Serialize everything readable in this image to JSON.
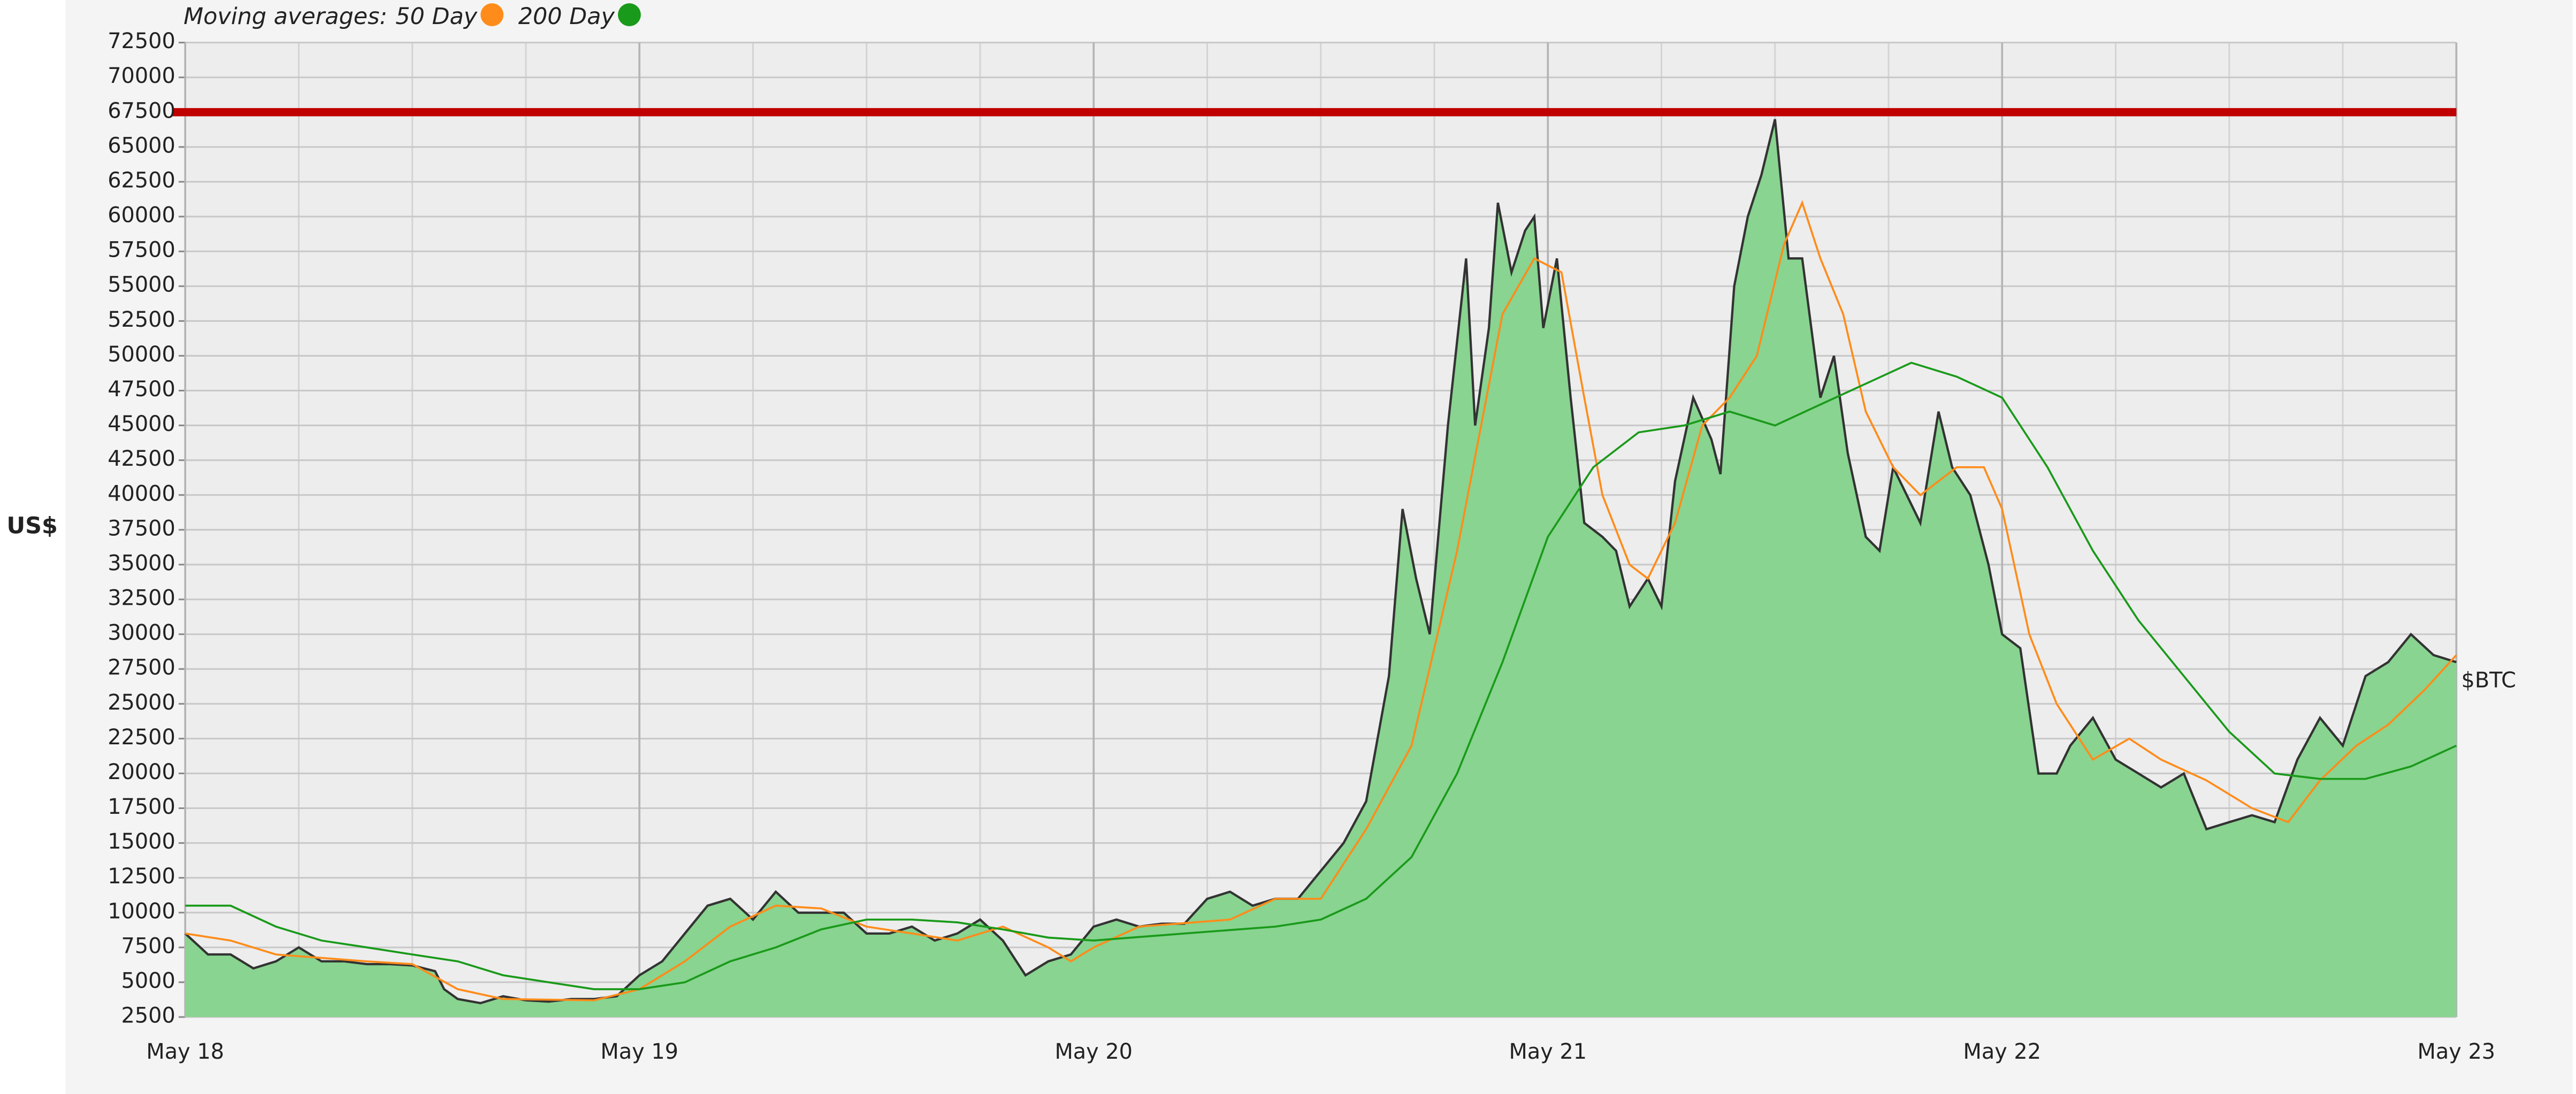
{
  "chart_data": {
    "type": "line",
    "ylabel": "US$",
    "legend_title": "Moving averages:",
    "ylim": [
      2500,
      72500
    ],
    "yticks": [
      2500,
      5000,
      7500,
      10000,
      12500,
      15000,
      17500,
      20000,
      22500,
      25000,
      27500,
      30000,
      32500,
      35000,
      37500,
      40000,
      42500,
      45000,
      47500,
      50000,
      52500,
      55000,
      57500,
      60000,
      62500,
      65000,
      67500,
      70000,
      72500
    ],
    "xlim": [
      0,
      5
    ],
    "xticks": [
      {
        "value": 0,
        "label": "May 18"
      },
      {
        "value": 1,
        "label": "May 19"
      },
      {
        "value": 2,
        "label": "May 20"
      },
      {
        "value": 3,
        "label": "May 21"
      },
      {
        "value": 4,
        "label": "May 22"
      },
      {
        "value": 5,
        "label": "May 23"
      }
    ],
    "grid": true,
    "reference_line": {
      "value": 67500,
      "color": "#c00000"
    },
    "series": [
      {
        "name": "$BTC",
        "color": "#333333",
        "fill": "#88d490",
        "legend": false,
        "x": [
          0,
          0.05,
          0.1,
          0.15,
          0.2,
          0.25,
          0.3,
          0.35,
          0.4,
          0.45,
          0.5,
          0.55,
          0.57,
          0.6,
          0.65,
          0.7,
          0.75,
          0.8,
          0.85,
          0.9,
          0.95,
          1.0,
          1.05,
          1.1,
          1.15,
          1.2,
          1.25,
          1.3,
          1.35,
          1.4,
          1.45,
          1.5,
          1.55,
          1.6,
          1.65,
          1.7,
          1.75,
          1.8,
          1.85,
          1.9,
          1.95,
          2.0,
          2.05,
          2.1,
          2.15,
          2.2,
          2.25,
          2.3,
          2.35,
          2.4,
          2.45,
          2.5,
          2.55,
          2.6,
          2.65,
          2.68,
          2.71,
          2.74,
          2.78,
          2.82,
          2.84,
          2.87,
          2.89,
          2.92,
          2.95,
          2.97,
          2.99,
          3.02,
          3.05,
          3.08,
          3.12,
          3.15,
          3.18,
          3.22,
          3.25,
          3.28,
          3.32,
          3.36,
          3.38,
          3.41,
          3.44,
          3.47,
          3.5,
          3.53,
          3.56,
          3.6,
          3.63,
          3.66,
          3.7,
          3.73,
          3.76,
          3.79,
          3.82,
          3.86,
          3.89,
          3.93,
          3.97,
          4.0,
          4.04,
          4.08,
          4.12,
          4.15,
          4.2,
          4.25,
          4.3,
          4.35,
          4.4,
          4.45,
          4.5,
          4.55,
          4.6,
          4.65,
          4.7,
          4.75,
          4.8,
          4.85,
          4.9,
          4.95,
          5.0
        ],
        "values": [
          8500,
          7000,
          7000,
          6000,
          6500,
          7500,
          6500,
          6500,
          6300,
          6300,
          6200,
          5800,
          4500,
          3800,
          3500,
          4000,
          3700,
          3600,
          3800,
          3800,
          4000,
          5500,
          6500,
          8500,
          10500,
          11000,
          9500,
          11500,
          10000,
          10000,
          10000,
          8500,
          8500,
          9000,
          8000,
          8500,
          9500,
          8000,
          5500,
          6500,
          7000,
          9000,
          9500,
          9000,
          9200,
          9200,
          11000,
          11500,
          10500,
          11000,
          11000,
          13000,
          15000,
          18000,
          27000,
          39000,
          34000,
          30000,
          45000,
          57000,
          45000,
          52000,
          61000,
          56000,
          59000,
          60000,
          52000,
          57000,
          47000,
          38000,
          37000,
          36000,
          32000,
          34000,
          32000,
          41000,
          47000,
          44000,
          41500,
          55000,
          60000,
          63000,
          67000,
          57000,
          57000,
          47000,
          50000,
          43000,
          37000,
          36000,
          42000,
          40000,
          38000,
          46000,
          42000,
          40000,
          35000,
          30000,
          29000,
          20000,
          20000,
          22000,
          24000,
          21000,
          20000,
          19000,
          20000,
          16000,
          16500,
          17000,
          16500,
          21000,
          24000,
          22000,
          27000,
          28000,
          30000,
          28500,
          28000
        ]
      },
      {
        "name": "50 Day",
        "color": "#ff8c1a",
        "legend": true,
        "x": [
          0,
          0.1,
          0.2,
          0.4,
          0.5,
          0.6,
          0.7,
          0.9,
          1.0,
          1.1,
          1.2,
          1.3,
          1.4,
          1.5,
          1.6,
          1.7,
          1.8,
          1.9,
          1.95,
          2.0,
          2.1,
          2.3,
          2.4,
          2.5,
          2.6,
          2.7,
          2.8,
          2.9,
          2.97,
          3.03,
          3.08,
          3.12,
          3.18,
          3.22,
          3.28,
          3.34,
          3.4,
          3.46,
          3.52,
          3.56,
          3.6,
          3.65,
          3.7,
          3.76,
          3.82,
          3.9,
          3.96,
          4.0,
          4.06,
          4.12,
          4.2,
          4.28,
          4.35,
          4.45,
          4.55,
          4.63,
          4.7,
          4.78,
          4.85,
          4.93,
          5.0
        ],
        "values": [
          8500,
          8000,
          7000,
          6500,
          6300,
          4500,
          3800,
          3700,
          4500,
          6500,
          9000,
          10500,
          10300,
          9000,
          8500,
          8000,
          9000,
          7500,
          6500,
          7500,
          9000,
          9500,
          11000,
          11000,
          16000,
          22000,
          36000,
          53000,
          57000,
          56000,
          47000,
          40000,
          35000,
          34000,
          38000,
          45000,
          47000,
          50000,
          58000,
          61000,
          57000,
          53000,
          46000,
          42000,
          40000,
          42000,
          42000,
          39000,
          30000,
          25000,
          21000,
          22500,
          21000,
          19500,
          17500,
          16500,
          19500,
          22000,
          23500,
          26000,
          28500
        ]
      },
      {
        "name": "200 Day",
        "color": "#1a9a1a",
        "legend": true,
        "x": [
          0,
          0.1,
          0.2,
          0.3,
          0.4,
          0.5,
          0.6,
          0.7,
          0.8,
          0.9,
          1.0,
          1.1,
          1.2,
          1.3,
          1.4,
          1.5,
          1.6,
          1.7,
          1.8,
          1.9,
          2.0,
          2.2,
          2.4,
          2.5,
          2.6,
          2.7,
          2.8,
          2.9,
          3.0,
          3.1,
          3.2,
          3.3,
          3.4,
          3.5,
          3.6,
          3.7,
          3.8,
          3.9,
          4.0,
          4.1,
          4.2,
          4.3,
          4.4,
          4.5,
          4.6,
          4.7,
          4.8,
          4.9,
          5.0
        ],
        "values": [
          10500,
          10500,
          9000,
          8000,
          7500,
          7000,
          6500,
          5500,
          5000,
          4500,
          4500,
          5000,
          6500,
          7500,
          8800,
          9500,
          9500,
          9300,
          8800,
          8200,
          8000,
          8500,
          9000,
          9500,
          11000,
          14000,
          20000,
          28000,
          37000,
          42000,
          44500,
          45000,
          46000,
          45000,
          46500,
          48000,
          49500,
          48500,
          47000,
          42000,
          36000,
          31000,
          27000,
          23000,
          20000,
          19600,
          19600,
          20500,
          22000
        ]
      }
    ]
  }
}
